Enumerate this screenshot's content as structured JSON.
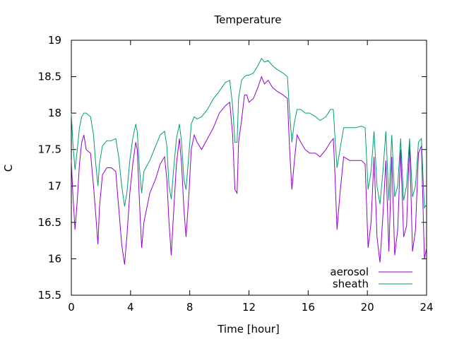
{
  "chart_data": {
    "type": "line",
    "title": "Temperature",
    "xlabel": "Time [hour]",
    "ylabel": "C",
    "xlim": [
      0,
      24
    ],
    "ylim": [
      15.5,
      19
    ],
    "xticks": [
      0,
      4,
      8,
      12,
      16,
      20,
      24
    ],
    "xtick_labels": [
      "0",
      "4",
      "8",
      "12",
      "16",
      "20",
      "24"
    ],
    "yticks": [
      15.5,
      16,
      16.5,
      17,
      17.5,
      18,
      18.5,
      19
    ],
    "ytick_labels": [
      "15.5",
      "16",
      "16.5",
      "17",
      "17.5",
      "18",
      "18.5",
      "19"
    ],
    "grid": false,
    "legend_position": "bottom-right",
    "series": [
      {
        "name": "aerosol",
        "color": "#9400d3",
        "x": [
          0,
          0.1,
          0.25,
          0.4,
          0.55,
          0.7,
          0.85,
          1.0,
          1.3,
          1.5,
          1.65,
          1.8,
          1.9,
          2.1,
          2.4,
          2.7,
          3.0,
          3.2,
          3.4,
          3.6,
          3.75,
          3.95,
          4.15,
          4.35,
          4.45,
          4.6,
          4.75,
          4.9,
          5.3,
          5.7,
          6.0,
          6.3,
          6.45,
          6.6,
          6.75,
          6.9,
          7.1,
          7.3,
          7.45,
          7.6,
          7.75,
          7.95,
          8.1,
          8.3,
          8.5,
          8.8,
          9.2,
          9.6,
          10.0,
          10.4,
          10.7,
          10.9,
          11.05,
          11.2,
          11.3,
          11.5,
          11.7,
          11.85,
          12.0,
          12.3,
          12.6,
          12.85,
          13.05,
          13.3,
          13.6,
          13.9,
          14.3,
          14.6,
          14.75,
          14.9,
          15.05,
          15.25,
          15.5,
          15.8,
          16.1,
          16.5,
          16.8,
          17.2,
          17.5,
          17.7,
          17.8,
          17.95,
          18.15,
          18.4,
          18.8,
          19.2,
          19.6,
          19.85,
          20.05,
          20.25,
          20.45,
          20.65,
          20.85,
          21.05,
          21.25,
          21.45,
          21.65,
          21.85,
          22.05,
          22.25,
          22.45,
          22.65,
          22.85,
          23.05,
          23.25,
          23.45,
          23.65,
          23.85,
          24.0
        ],
        "y": [
          17.35,
          16.9,
          16.4,
          16.8,
          17.3,
          17.6,
          17.7,
          17.5,
          17.45,
          17.0,
          16.6,
          16.2,
          16.7,
          17.15,
          17.25,
          17.25,
          17.2,
          16.7,
          16.2,
          15.92,
          16.3,
          16.9,
          17.3,
          17.6,
          17.5,
          16.8,
          16.15,
          16.5,
          16.9,
          17.1,
          17.3,
          17.4,
          17.1,
          16.5,
          16.05,
          16.6,
          17.3,
          17.65,
          17.3,
          16.7,
          16.3,
          16.9,
          17.5,
          17.7,
          17.6,
          17.5,
          17.65,
          17.8,
          18.0,
          18.1,
          18.15,
          17.7,
          16.95,
          16.9,
          17.6,
          17.9,
          18.25,
          18.25,
          18.15,
          18.2,
          18.35,
          18.5,
          18.4,
          18.45,
          18.35,
          18.3,
          18.25,
          18.2,
          17.5,
          16.95,
          17.3,
          17.7,
          17.6,
          17.5,
          17.45,
          17.45,
          17.4,
          17.5,
          17.6,
          17.65,
          17.2,
          16.4,
          16.9,
          17.4,
          17.35,
          17.35,
          17.35,
          17.3,
          16.15,
          16.5,
          17.4,
          16.3,
          15.95,
          16.6,
          17.35,
          16.1,
          17.4,
          16.05,
          16.4,
          17.5,
          16.3,
          16.45,
          17.6,
          16.1,
          16.4,
          17.45,
          17.55,
          16.0,
          16.15
        ]
      },
      {
        "name": "sheath",
        "color": "#009e73",
        "x": [
          0,
          0.1,
          0.25,
          0.4,
          0.55,
          0.7,
          0.85,
          1.0,
          1.3,
          1.5,
          1.65,
          1.8,
          1.9,
          2.1,
          2.4,
          2.7,
          3.0,
          3.2,
          3.4,
          3.6,
          3.75,
          3.95,
          4.15,
          4.35,
          4.45,
          4.6,
          4.75,
          4.9,
          5.3,
          5.7,
          6.0,
          6.3,
          6.45,
          6.6,
          6.75,
          6.9,
          7.1,
          7.3,
          7.45,
          7.6,
          7.75,
          7.95,
          8.1,
          8.3,
          8.5,
          8.8,
          9.2,
          9.6,
          10.0,
          10.4,
          10.7,
          10.9,
          11.05,
          11.2,
          11.3,
          11.5,
          11.7,
          11.85,
          12.0,
          12.3,
          12.6,
          12.85,
          13.05,
          13.3,
          13.6,
          13.9,
          14.3,
          14.6,
          14.75,
          14.9,
          15.05,
          15.25,
          15.5,
          15.8,
          16.1,
          16.5,
          16.8,
          17.2,
          17.5,
          17.7,
          17.8,
          17.95,
          18.15,
          18.4,
          18.8,
          19.2,
          19.6,
          19.85,
          20.05,
          20.25,
          20.45,
          20.65,
          20.85,
          21.05,
          21.25,
          21.45,
          21.65,
          21.85,
          22.05,
          22.25,
          22.45,
          22.65,
          22.85,
          23.05,
          23.25,
          23.45,
          23.65,
          23.85,
          24.0
        ],
        "y": [
          18.0,
          17.6,
          17.22,
          17.5,
          17.8,
          17.95,
          18.0,
          18.0,
          17.95,
          17.7,
          17.3,
          17.0,
          17.3,
          17.55,
          17.62,
          17.62,
          17.65,
          17.4,
          17.0,
          16.72,
          16.9,
          17.35,
          17.65,
          17.85,
          17.75,
          17.25,
          16.9,
          17.2,
          17.35,
          17.55,
          17.7,
          17.75,
          17.55,
          17.0,
          16.82,
          17.2,
          17.65,
          17.85,
          17.6,
          17.1,
          16.95,
          17.45,
          17.85,
          17.95,
          17.92,
          17.95,
          18.05,
          18.2,
          18.3,
          18.42,
          18.45,
          18.1,
          17.6,
          17.6,
          18.2,
          18.45,
          18.5,
          18.52,
          18.52,
          18.55,
          18.65,
          18.75,
          18.7,
          18.72,
          18.65,
          18.6,
          18.55,
          18.5,
          18.0,
          17.6,
          17.85,
          18.05,
          18.05,
          18.0,
          18.0,
          17.95,
          17.9,
          17.95,
          18.05,
          18.05,
          17.7,
          17.25,
          17.5,
          17.8,
          17.8,
          17.8,
          17.82,
          17.8,
          16.95,
          17.2,
          17.75,
          17.0,
          16.75,
          17.2,
          17.75,
          16.8,
          17.7,
          16.85,
          17.0,
          17.65,
          16.8,
          17.0,
          17.65,
          16.85,
          17.0,
          17.6,
          17.65,
          16.7,
          16.75
        ]
      }
    ]
  }
}
